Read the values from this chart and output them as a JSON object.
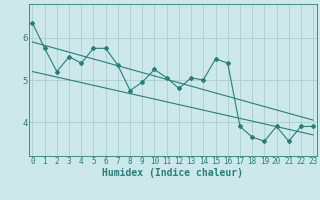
{
  "x": [
    0,
    1,
    2,
    3,
    4,
    5,
    6,
    7,
    8,
    9,
    10,
    11,
    12,
    13,
    14,
    15,
    16,
    17,
    18,
    19,
    20,
    21,
    22,
    23
  ],
  "y": [
    6.35,
    5.75,
    5.2,
    5.55,
    5.4,
    5.75,
    5.75,
    5.35,
    4.75,
    4.95,
    5.25,
    5.05,
    4.8,
    5.05,
    5.0,
    5.5,
    5.4,
    3.9,
    3.65,
    3.55,
    3.9,
    3.55,
    3.9,
    3.9
  ],
  "trend1_x": [
    0,
    23
  ],
  "trend1_y": [
    5.9,
    4.05
  ],
  "trend2_x": [
    0,
    23
  ],
  "trend2_y": [
    5.2,
    3.7
  ],
  "bg_color": "#cce8ea",
  "line_color": "#2a7d78",
  "grid_color": "#aacfcf",
  "xlabel": "Humidex (Indice chaleur)",
  "xticks": [
    0,
    1,
    2,
    3,
    4,
    5,
    6,
    7,
    8,
    9,
    10,
    11,
    12,
    13,
    14,
    15,
    16,
    17,
    18,
    19,
    20,
    21,
    22,
    23
  ],
  "yticks": [
    4,
    5,
    6
  ],
  "ylim": [
    3.2,
    6.8
  ],
  "xlim": [
    -0.3,
    23.3
  ],
  "tick_fontsize": 5.5,
  "label_fontsize": 7.0
}
